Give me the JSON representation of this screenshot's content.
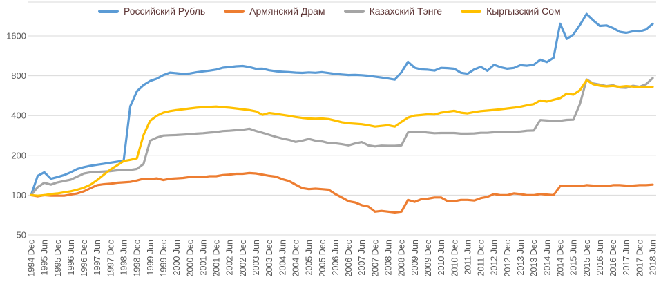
{
  "legend": {
    "items": [
      {
        "key": "rub",
        "label": "Российский Рубль",
        "color": "#5B9BD5"
      },
      {
        "key": "amd",
        "label": "Армянский Драм",
        "color": "#ED7D31"
      },
      {
        "key": "kzt",
        "label": "Казахский Тэнге",
        "color": "#A5A5A5"
      },
      {
        "key": "kgs",
        "label": "Кыргызский Сом",
        "color": "#FFC000"
      }
    ],
    "text_color": "#5e3636"
  },
  "chart_data": {
    "type": "line",
    "title": "",
    "xlabel": "",
    "ylabel": "",
    "y_axis": {
      "scale": "log2",
      "tick_values": [
        1600,
        800,
        400,
        200,
        100,
        50
      ],
      "min": 50,
      "max": 2500,
      "label_color": "#595959"
    },
    "x_axis": {
      "sampling": "quarterly values from 1994 Dec to 2018 Jun; ticks labeled every 6 months",
      "tick_labels": [
        "1994 Dec",
        "1995 Jun",
        "1995 Dec",
        "1996 Jun",
        "1996 Dec",
        "1997 Jun",
        "1997 Dec",
        "1998 Jun",
        "1998 Dec",
        "1999 Jun",
        "1999 Dec",
        "2000 Jun",
        "2000 Dec",
        "2001 Jun",
        "2001 Dec",
        "2002 Jun",
        "2002 Dec",
        "2003 Jun",
        "2003 Dec",
        "2004 Jun",
        "2004 Dec",
        "2005 Jun",
        "2005 Dec",
        "2006 Jun",
        "2006 Dec",
        "2007 Jun",
        "2007 Dec",
        "2008 Jun",
        "2008 Dec",
        "2009 Jun",
        "2009 Dec",
        "2010 Jun",
        "2010 Dec",
        "2011 Jun",
        "2011 Dec",
        "2012 Jun",
        "2012 Dec",
        "2013 Jun",
        "2013 Dec",
        "2014 Jun",
        "2014 Dec",
        "2015 Jun",
        "2015 Dec",
        "2016 Jun",
        "2016 Dec",
        "2017 Jun",
        "2017 Dec",
        "2018 Jun"
      ],
      "label_color": "#595959"
    },
    "grid": {
      "show": true,
      "color": "#D9D9D9"
    },
    "legend_position": "top",
    "series": [
      {
        "name": "Российский Рубль",
        "color": "#5B9BD5",
        "values": [
          100,
          140,
          149,
          133,
          137,
          142,
          149,
          158,
          163,
          167,
          170,
          173,
          176,
          179,
          182,
          470,
          610,
          680,
          730,
          760,
          810,
          845,
          835,
          825,
          832,
          850,
          863,
          875,
          890,
          920,
          930,
          942,
          948,
          930,
          902,
          905,
          880,
          865,
          858,
          852,
          845,
          840,
          848,
          842,
          852,
          838,
          825,
          818,
          810,
          812,
          808,
          800,
          788,
          775,
          762,
          748,
          850,
          1020,
          920,
          893,
          888,
          876,
          918,
          913,
          903,
          842,
          828,
          893,
          933,
          872,
          968,
          928,
          905,
          916,
          962,
          952,
          968,
          1058,
          1015,
          1092,
          1980,
          1520,
          1640,
          1940,
          2350,
          2100,
          1905,
          1920,
          1835,
          1720,
          1690,
          1735,
          1730,
          1790,
          1975
        ]
      },
      {
        "name": "Армянский Драм",
        "color": "#ED7D31",
        "values": [
          100,
          98,
          100,
          99,
          99,
          99,
          101,
          103,
          107,
          113,
          119,
          121,
          122,
          124,
          125,
          126,
          129,
          133,
          132,
          134,
          130,
          133,
          134,
          135,
          137,
          137,
          137,
          139,
          139,
          142,
          143,
          145,
          145,
          147,
          146,
          143,
          140,
          138,
          132,
          128,
          120,
          113,
          111,
          112,
          111,
          110,
          102,
          96,
          90,
          88,
          84,
          82,
          75,
          76,
          75,
          74,
          75,
          92,
          89,
          93,
          94,
          96,
          96,
          90,
          90,
          92,
          92,
          91,
          95,
          97,
          102,
          100,
          100,
          103,
          102,
          100,
          100,
          102,
          101,
          100,
          117,
          118,
          117,
          117,
          119,
          118,
          118,
          117,
          119,
          119,
          118,
          118,
          119,
          119,
          120
        ]
      },
      {
        "name": "Казахский Тэнге",
        "color": "#A5A5A5",
        "values": [
          100,
          115,
          124,
          120,
          125,
          128,
          131,
          138,
          146,
          149,
          150,
          151,
          152,
          154,
          155,
          155,
          158,
          172,
          258,
          272,
          282,
          284,
          285,
          287,
          289,
          292,
          294,
          297,
          300,
          305,
          307,
          310,
          312,
          318,
          306,
          296,
          286,
          276,
          268,
          262,
          253,
          258,
          266,
          258,
          255,
          248,
          247,
          243,
          238,
          246,
          252,
          238,
          234,
          237,
          236,
          236,
          238,
          298,
          301,
          302,
          297,
          294,
          295,
          295,
          295,
          292,
          292,
          293,
          296,
          296,
          299,
          299,
          301,
          301,
          303,
          307,
          308,
          370,
          367,
          364,
          365,
          371,
          372,
          490,
          750,
          700,
          685,
          668,
          678,
          652,
          648,
          672,
          660,
          690,
          768
        ]
      },
      {
        "name": "Кыргызский Сом",
        "color": "#FFC000",
        "values": [
          100,
          99,
          100,
          102,
          103,
          105,
          107,
          110,
          114,
          120,
          130,
          143,
          156,
          168,
          181,
          185,
          190,
          285,
          365,
          398,
          420,
          432,
          440,
          446,
          452,
          458,
          462,
          465,
          468,
          462,
          458,
          452,
          446,
          440,
          430,
          405,
          418,
          412,
          405,
          398,
          390,
          384,
          380,
          378,
          380,
          376,
          366,
          356,
          350,
          347,
          344,
          338,
          330,
          334,
          338,
          330,
          358,
          386,
          400,
          404,
          409,
          407,
          420,
          428,
          434,
          420,
          415,
          425,
          432,
          436,
          441,
          446,
          452,
          458,
          466,
          478,
          488,
          520,
          510,
          526,
          542,
          586,
          576,
          622,
          740,
          690,
          672,
          665,
          670,
          660,
          668,
          662,
          655,
          657,
          660
        ]
      }
    ]
  }
}
